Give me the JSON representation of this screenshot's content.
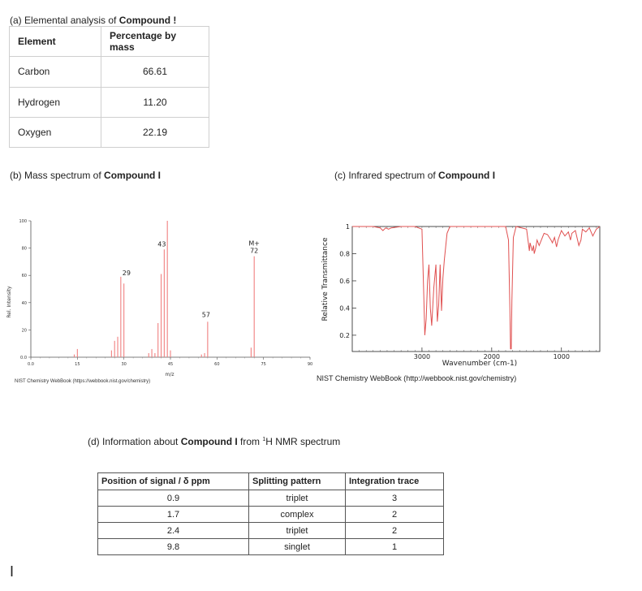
{
  "part_a": {
    "heading_prefix": "(a) Elemental analysis of ",
    "heading_bold": "Compound !",
    "headers": [
      "Element",
      "Percentage by mass"
    ],
    "rows": [
      {
        "element": "Carbon",
        "percent": "66.61"
      },
      {
        "element": "Hydrogen",
        "percent": "11.20"
      },
      {
        "element": "Oxygen",
        "percent": "22.19"
      }
    ]
  },
  "part_b": {
    "heading_prefix": "(b) Mass spectrum of ",
    "heading_bold": "Compound I",
    "credit": "NIST Chemistry WebBook (https://webbook.nist.gov/chemistry)"
  },
  "part_c": {
    "heading_prefix": "(c) Infrared spectrum of ",
    "heading_bold": "Compound I",
    "credit": "NIST Chemistry WebBook (http://webbook.nist.gov/chemistry)"
  },
  "part_d": {
    "heading_prefix": "(d) Information about ",
    "heading_bold": "Compound I",
    "heading_suffix_pre": " from ",
    "heading_sup": "1",
    "heading_suffix": "H NMR spectrum",
    "headers": [
      "Position of signal / δ ppm",
      "Splitting pattern",
      "Integration trace"
    ],
    "rows": [
      {
        "position": "0.9",
        "splitting": "triplet",
        "integration": "3"
      },
      {
        "position": "1.7",
        "splitting": "complex",
        "integration": "2"
      },
      {
        "position": "2.4",
        "splitting": "triplet",
        "integration": "2"
      },
      {
        "position": "9.8",
        "splitting": "singlet",
        "integration": "1"
      }
    ]
  },
  "stray_mark": "I",
  "chart_data": [
    {
      "type": "bar",
      "xlabel": "m/z",
      "ylabel": "Rel. Intensity",
      "xlim": [
        0,
        90
      ],
      "ylim": [
        0,
        100
      ],
      "xticks": [
        "0.0",
        "15",
        "30",
        "45",
        "60",
        "75",
        "90"
      ],
      "yticks": [
        "0.0",
        "20",
        "40",
        "60",
        "80",
        "100"
      ],
      "peaks": [
        {
          "x": 14,
          "y": 2
        },
        {
          "x": 15,
          "y": 6
        },
        {
          "x": 26,
          "y": 5
        },
        {
          "x": 27,
          "y": 12
        },
        {
          "x": 28,
          "y": 15
        },
        {
          "x": 29,
          "y": 59
        },
        {
          "x": 30,
          "y": 54
        },
        {
          "x": 38,
          "y": 3
        },
        {
          "x": 39,
          "y": 6
        },
        {
          "x": 40,
          "y": 3
        },
        {
          "x": 41,
          "y": 25
        },
        {
          "x": 42,
          "y": 61
        },
        {
          "x": 43,
          "y": 79
        },
        {
          "x": 44,
          "y": 100
        },
        {
          "x": 45,
          "y": 5
        },
        {
          "x": 55,
          "y": 2
        },
        {
          "x": 56,
          "y": 3
        },
        {
          "x": 57,
          "y": 26
        },
        {
          "x": 71,
          "y": 7
        },
        {
          "x": 72,
          "y": 74
        }
      ],
      "labels": [
        {
          "x": 29,
          "text": "29"
        },
        {
          "x": 43,
          "text": "43"
        },
        {
          "x": 57,
          "text": "57"
        },
        {
          "x": 72,
          "text": "M+"
        },
        {
          "x": 72,
          "text": "72"
        }
      ]
    },
    {
      "type": "line",
      "xlabel": "Wavenumber (cm-1)",
      "ylabel": "Relative Transmittance",
      "xlim": [
        4000,
        450
      ],
      "ylim": [
        0.08,
        1.0
      ],
      "xticks": [
        "3000",
        "2000",
        "1000"
      ],
      "yticks": [
        "1",
        "0.8",
        "0.6",
        "0.4",
        "0.2"
      ],
      "series": [
        {
          "x": [
            4000,
            3700,
            3600,
            3560,
            3520,
            3480,
            3440,
            3300,
            3100,
            3000,
            2975,
            2960,
            2940,
            2920,
            2900,
            2880,
            2860,
            2830,
            2800,
            2780,
            2760,
            2740,
            2720,
            2700,
            2680,
            2640,
            2600,
            2200,
            1800,
            1760,
            1740,
            1730,
            1720,
            1710,
            1690,
            1650,
            1500,
            1470,
            1460,
            1450,
            1420,
            1400,
            1390,
            1370,
            1350,
            1320,
            1250,
            1200,
            1150,
            1130,
            1100,
            1070,
            1050,
            1000,
            950,
            900,
            870,
            850,
            800,
            750,
            720,
            700,
            650,
            600,
            550,
            500,
            450
          ],
          "y": [
            1.0,
            1.0,
            0.99,
            0.97,
            0.99,
            0.98,
            0.99,
            1.0,
            1.0,
            0.98,
            0.5,
            0.2,
            0.32,
            0.6,
            0.72,
            0.4,
            0.27,
            0.55,
            0.72,
            0.3,
            0.42,
            0.72,
            0.38,
            0.62,
            0.75,
            0.95,
            1.0,
            1.0,
            1.0,
            0.9,
            0.4,
            0.1,
            0.1,
            0.45,
            0.92,
            1.0,
            0.98,
            0.86,
            0.82,
            0.88,
            0.82,
            0.86,
            0.8,
            0.84,
            0.9,
            0.86,
            0.95,
            0.94,
            0.9,
            0.88,
            0.92,
            0.85,
            0.9,
            0.97,
            0.93,
            0.96,
            0.9,
            0.95,
            0.97,
            0.86,
            0.9,
            0.98,
            0.96,
            0.99,
            0.93,
            0.98,
            1.0
          ]
        }
      ]
    }
  ]
}
